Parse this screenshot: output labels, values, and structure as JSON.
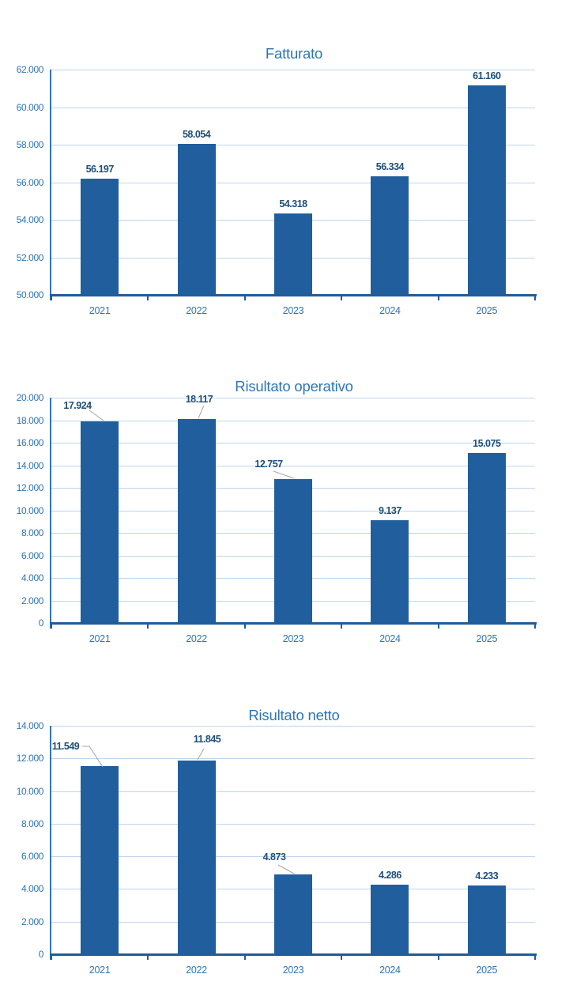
{
  "page": {
    "background_color": "#FFFFFF",
    "description": "Three vertical bar charts of yearly financial figures"
  },
  "palette": {
    "bar_fill": "#205E9D",
    "title_text": "#2E75B6",
    "axis_tick_text": "#2E75B6",
    "data_label_text": "#1F4E79",
    "gridline": "#BDD7EE",
    "y_axis_line": "#2E75B6",
    "x_axis_line": "#1F5C99",
    "leader_line": "#A6A6A6"
  },
  "chart_data": [
    {
      "type": "bar",
      "title": "Fatturato",
      "xlabel": "",
      "ylabel": "",
      "legend": "none",
      "grid": true,
      "categories": [
        "2021",
        "2022",
        "2023",
        "2024",
        "2025"
      ],
      "values": [
        56197,
        58054,
        54318,
        56334,
        61160
      ],
      "value_labels": [
        "56.197",
        "58.054",
        "54.318",
        "56.334",
        "61.160"
      ],
      "ylim": [
        50000,
        62000
      ],
      "ytick_step": 2000,
      "y_ticks": [
        "62.000",
        "60.000",
        "58.000",
        "56.000",
        "54.000",
        "52.000",
        "50.000"
      ],
      "callouts": []
    },
    {
      "type": "bar",
      "title": "Risultato operativo",
      "xlabel": "",
      "ylabel": "",
      "legend": "none",
      "grid": true,
      "categories": [
        "2021",
        "2022",
        "2023",
        "2024",
        "2025"
      ],
      "values": [
        17924,
        18117,
        12757,
        9137,
        15075
      ],
      "value_labels": [
        "17.924",
        "18.117",
        "12.757",
        "9.137",
        "15.075"
      ],
      "ylim": [
        0,
        20000
      ],
      "ytick_step": 2000,
      "y_ticks": [
        "20.000",
        "18.000",
        "16.000",
        "14.000",
        "12.000",
        "10.000",
        "8.000",
        "6.000",
        "4.000",
        "2.000",
        "0"
      ],
      "callouts": [
        {
          "index": 0,
          "label_center": [
            33,
            10
          ],
          "leader": [
            [
              48,
              16
            ],
            [
              66,
              29
            ]
          ]
        },
        {
          "index": 1,
          "label_center": [
            187,
            2
          ],
          "leader": [
            [
              193,
              10
            ],
            [
              186,
              26
            ]
          ]
        },
        {
          "index": 2,
          "label_center": [
            275,
            84
          ],
          "leader": [
            [
              281,
              93
            ],
            [
              307,
              102
            ]
          ]
        }
      ]
    },
    {
      "type": "bar",
      "title": "Risultato netto",
      "xlabel": "",
      "ylabel": "",
      "legend": "none",
      "grid": true,
      "categories": [
        "2021",
        "2022",
        "2023",
        "2024",
        "2025"
      ],
      "values": [
        11549,
        11845,
        4873,
        4286,
        4233
      ],
      "value_labels": [
        "11.549",
        "11.845",
        "4.873",
        "4.286",
        "4.233"
      ],
      "ylim": [
        0,
        14000
      ],
      "ytick_step": 2000,
      "y_ticks": [
        "14.000",
        "12.000",
        "10.000",
        "8.000",
        "6.000",
        "4.000",
        "2.000",
        "0"
      ],
      "callouts": [
        {
          "index": 0,
          "label_center": [
            18,
            26
          ],
          "leader": [
            [
              39,
              26
            ],
            [
              48,
              26
            ],
            [
              65,
              52
            ]
          ]
        },
        {
          "index": 1,
          "label_center": [
            197,
            17
          ],
          "leader": [
            [
              193,
              29
            ],
            [
              185,
              43
            ]
          ]
        },
        {
          "index": 2,
          "label_center": [
            282,
            166
          ],
          "leader": [
            [
              287,
              176
            ],
            [
              307,
              187
            ]
          ]
        }
      ]
    }
  ]
}
